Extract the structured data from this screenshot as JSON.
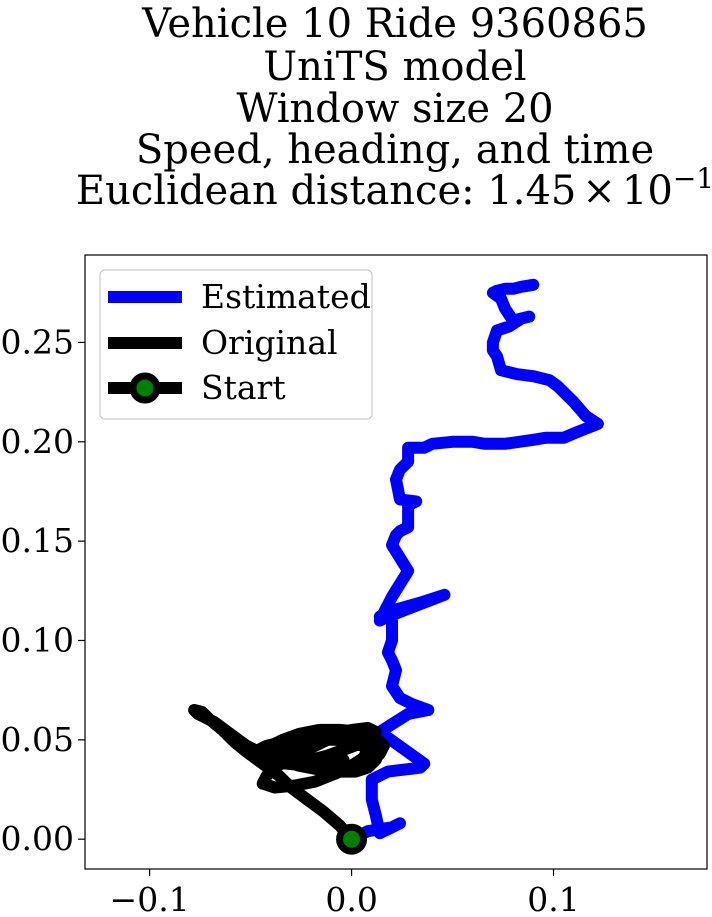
{
  "chart_data": {
    "type": "line",
    "title_lines": [
      "Vehicle 10 Ride 9360865",
      "UniTS model",
      "Window size 20",
      "Speed, heading, and time"
    ],
    "title_distance_prefix": "Euclidean distance: 1.45",
    "title_distance_times": "×",
    "title_distance_base": "10",
    "title_distance_exp": "−1",
    "xlim": [
      -0.132,
      0.176
    ],
    "ylim": [
      -0.015,
      0.294
    ],
    "x_ticks": [
      -0.1,
      0.0,
      0.1
    ],
    "x_tick_labels": [
      "−0.1",
      "0.0",
      "0.1"
    ],
    "y_ticks": [
      0.0,
      0.05,
      0.1,
      0.15,
      0.2,
      0.25
    ],
    "y_tick_labels": [
      "0.00",
      "0.05",
      "0.10",
      "0.15",
      "0.20",
      "0.25"
    ],
    "grid": false,
    "legend": {
      "placement": "top-left",
      "entries": [
        "Estimated",
        "Original",
        "Start"
      ]
    },
    "colors": {
      "estimated": "#0000ff",
      "original": "#000000",
      "start_marker_edge": "#000000",
      "start_marker_face": "#008000"
    },
    "series": [
      {
        "name": "Estimated",
        "x": [
          0.0,
          0.008,
          0.02,
          0.024,
          0.02,
          0.014,
          0.012,
          0.01,
          0.01,
          0.014,
          0.018,
          0.034,
          0.036,
          0.014,
          0.028,
          0.038,
          0.03,
          0.024,
          0.02,
          0.022,
          0.02,
          0.018,
          0.02,
          0.02,
          0.02,
          0.018,
          0.014,
          0.016,
          0.02,
          0.034,
          0.046,
          0.018,
          0.014,
          0.02,
          0.028,
          0.02,
          0.022,
          0.024,
          0.026,
          0.028,
          0.028,
          0.028,
          0.032,
          0.024,
          0.022,
          0.024,
          0.028,
          0.028,
          0.032,
          0.036,
          0.04,
          0.05,
          0.06,
          0.066,
          0.076,
          0.09,
          0.096,
          0.105,
          0.112,
          0.122,
          0.116,
          0.11,
          0.102,
          0.098,
          0.09,
          0.082,
          0.074,
          0.072,
          0.07,
          0.07,
          0.072,
          0.078,
          0.084,
          0.088,
          0.08,
          0.076,
          0.074,
          0.07,
          0.072,
          0.076,
          0.08,
          0.084,
          0.09
        ],
        "y": [
          0.0,
          0.004,
          0.006,
          0.008,
          0.006,
          0.003,
          0.012,
          0.02,
          0.03,
          0.032,
          0.034,
          0.036,
          0.038,
          0.054,
          0.063,
          0.065,
          0.068,
          0.071,
          0.077,
          0.085,
          0.09,
          0.094,
          0.1,
          0.104,
          0.11,
          0.114,
          0.112,
          0.113,
          0.115,
          0.119,
          0.123,
          0.112,
          0.11,
          0.122,
          0.135,
          0.148,
          0.153,
          0.155,
          0.156,
          0.157,
          0.161,
          0.168,
          0.17,
          0.171,
          0.181,
          0.186,
          0.19,
          0.197,
          0.197,
          0.197,
          0.199,
          0.2,
          0.2,
          0.199,
          0.199,
          0.201,
          0.202,
          0.202,
          0.205,
          0.209,
          0.213,
          0.22,
          0.228,
          0.231,
          0.233,
          0.234,
          0.236,
          0.243,
          0.246,
          0.25,
          0.256,
          0.258,
          0.262,
          0.263,
          0.261,
          0.267,
          0.272,
          0.275,
          0.276,
          0.277,
          0.277,
          0.278,
          0.279
        ]
      },
      {
        "name": "Original",
        "x": [
          0.0,
          -0.006,
          -0.014,
          -0.022,
          -0.03,
          -0.036,
          -0.04,
          -0.044,
          -0.052,
          -0.058,
          -0.064,
          -0.07,
          -0.074,
          -0.078,
          -0.076,
          -0.068,
          -0.06,
          -0.052,
          -0.044,
          -0.036,
          -0.028,
          -0.02,
          -0.012,
          -0.004,
          0.004,
          0.01,
          0.012,
          0.008,
          0.0,
          -0.008,
          -0.016,
          -0.024,
          -0.032,
          -0.038,
          -0.042,
          -0.044,
          -0.038,
          -0.028,
          -0.018,
          -0.008,
          0.0,
          0.006,
          0.008,
          0.004,
          -0.004,
          -0.012,
          -0.02,
          -0.028,
          -0.036,
          -0.042,
          -0.044,
          -0.04,
          -0.032,
          -0.022,
          -0.012,
          -0.004,
          0.002,
          0.006,
          0.01,
          0.01,
          0.004,
          -0.004,
          -0.014,
          -0.024,
          -0.034,
          -0.042,
          -0.046,
          -0.044,
          -0.034,
          -0.024,
          -0.014,
          -0.004,
          0.004,
          0.01,
          0.014,
          0.016,
          0.012,
          0.004,
          -0.006,
          -0.016,
          -0.026,
          -0.034,
          -0.04,
          -0.042,
          -0.036,
          -0.026,
          -0.016,
          -0.006,
          0.002,
          0.008,
          0.012,
          0.014,
          0.01,
          0.002,
          -0.008,
          -0.018,
          -0.026,
          -0.032,
          -0.034,
          -0.03,
          -0.022,
          -0.014,
          -0.008,
          -0.004
        ],
        "y": [
          0.0,
          0.007,
          0.014,
          0.02,
          0.026,
          0.032,
          0.035,
          0.038,
          0.044,
          0.049,
          0.055,
          0.06,
          0.064,
          0.065,
          0.063,
          0.059,
          0.053,
          0.047,
          0.043,
          0.04,
          0.039,
          0.04,
          0.042,
          0.045,
          0.048,
          0.051,
          0.054,
          0.056,
          0.055,
          0.052,
          0.048,
          0.044,
          0.04,
          0.036,
          0.032,
          0.028,
          0.026,
          0.027,
          0.029,
          0.033,
          0.037,
          0.041,
          0.045,
          0.048,
          0.05,
          0.05,
          0.049,
          0.047,
          0.045,
          0.044,
          0.042,
          0.04,
          0.038,
          0.037,
          0.036,
          0.036,
          0.037,
          0.04,
          0.044,
          0.048,
          0.051,
          0.052,
          0.052,
          0.051,
          0.049,
          0.047,
          0.045,
          0.042,
          0.04,
          0.038,
          0.036,
          0.035,
          0.036,
          0.039,
          0.043,
          0.047,
          0.051,
          0.054,
          0.055,
          0.055,
          0.053,
          0.05,
          0.047,
          0.043,
          0.04,
          0.037,
          0.035,
          0.034,
          0.034,
          0.036,
          0.04,
          0.045,
          0.048,
          0.05,
          0.051,
          0.05,
          0.047,
          0.044,
          0.041,
          0.039,
          0.038,
          0.038,
          0.039,
          0.04
        ]
      }
    ],
    "start_point": {
      "x": 0.0,
      "y": 0.0
    }
  }
}
